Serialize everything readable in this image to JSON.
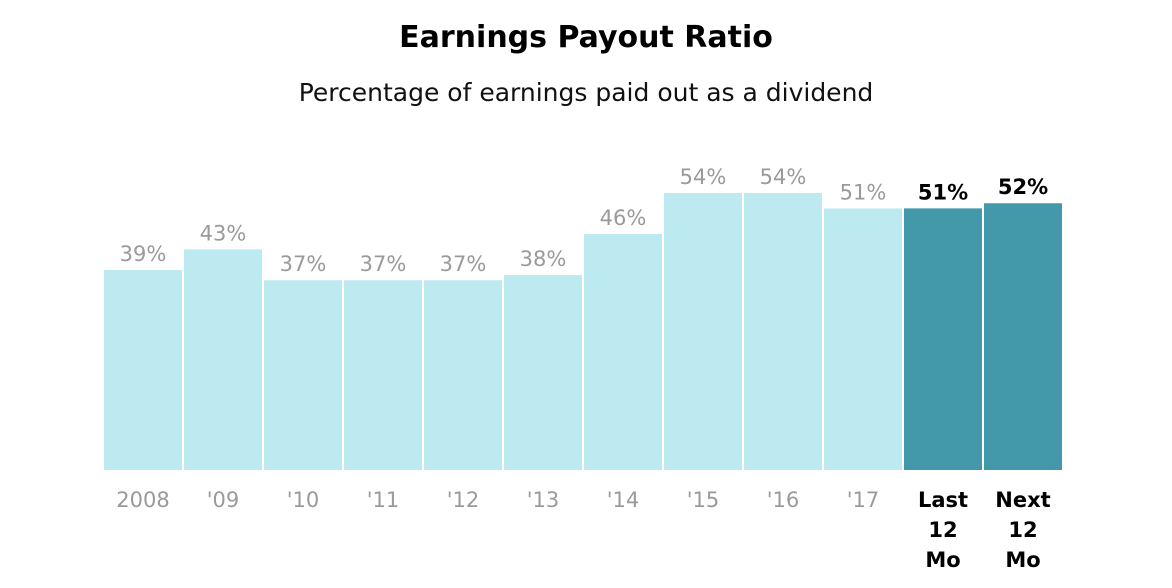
{
  "chart_data": {
    "type": "bar",
    "title": "Earnings Payout Ratio",
    "subtitle": "Percentage of earnings paid out as a dividend",
    "categories": [
      "2008",
      "'09",
      "'10",
      "'11",
      "'12",
      "'13",
      "'14",
      "'15",
      "'16",
      "'17",
      "Last 12 Mo",
      "Next 12 Mo"
    ],
    "values": [
      39,
      43,
      37,
      37,
      37,
      38,
      46,
      54,
      54,
      51,
      51,
      52
    ],
    "value_labels": [
      "39%",
      "43%",
      "37%",
      "37%",
      "37%",
      "38%",
      "46%",
      "54%",
      "54%",
      "51%",
      "51%",
      "52%"
    ],
    "highlighted": [
      false,
      false,
      false,
      false,
      false,
      false,
      false,
      false,
      false,
      false,
      true,
      true
    ],
    "ylim": [
      0,
      100
    ],
    "grid": false,
    "legend": "none",
    "colors": {
      "historical_bar": "#bdeaf0",
      "forecast_bar": "#4399aa",
      "historical_label": "#9a9a9a",
      "forecast_label": "#000000"
    }
  }
}
